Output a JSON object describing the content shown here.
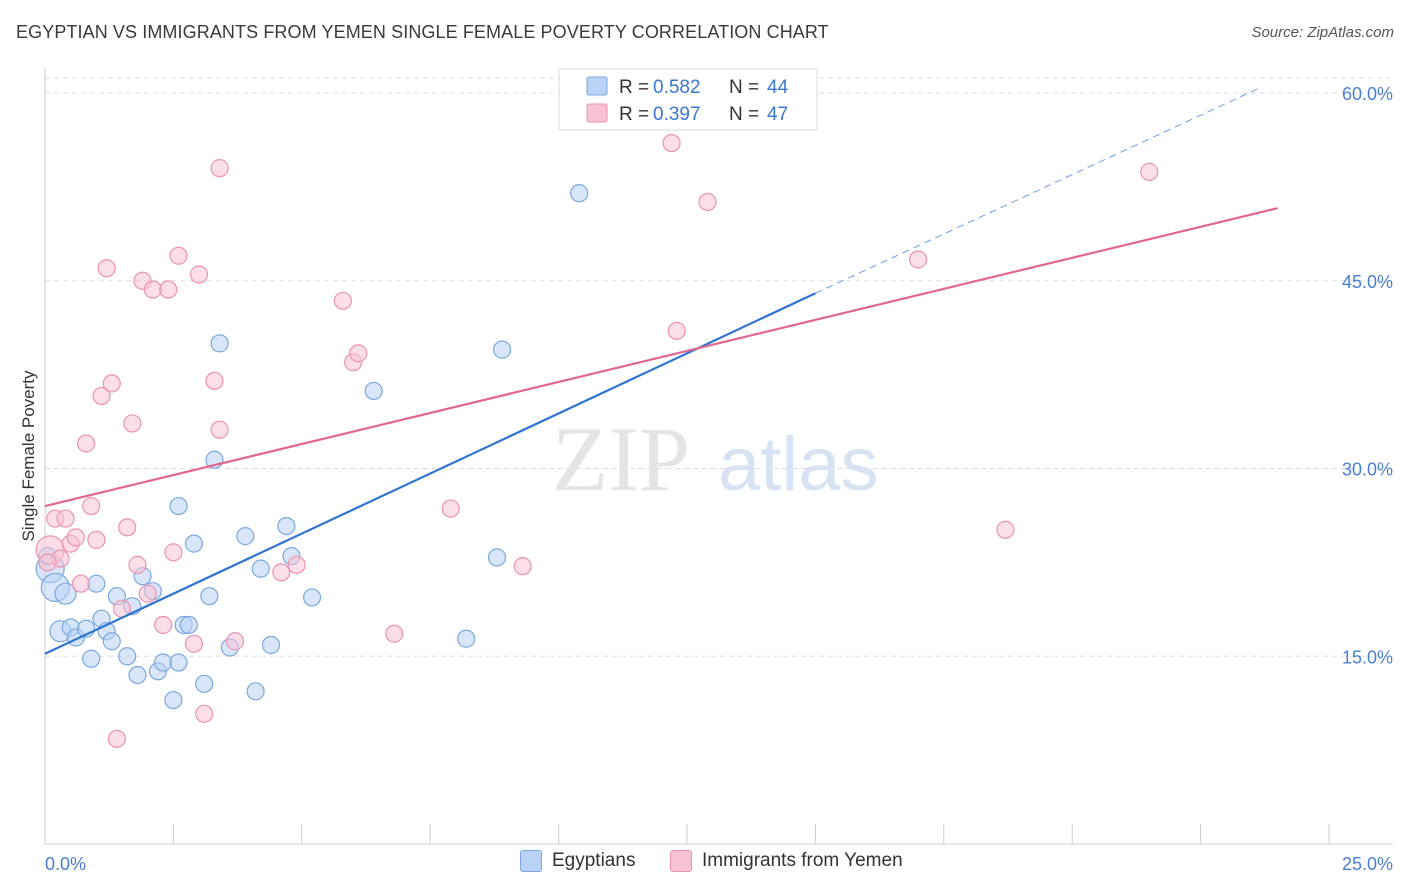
{
  "title": "EGYPTIAN VS IMMIGRANTS FROM YEMEN SINGLE FEMALE POVERTY CORRELATION CHART",
  "source": "Source: ZipAtlas.com",
  "watermark": {
    "zip": "ZIP",
    "atlas": "atlas"
  },
  "colors": {
    "egyptians_fill": "#b9d2f5",
    "egyptians_stroke": "#7aa8e0",
    "egyptians_line": "#2f74d0",
    "yemen_fill": "#f7c3d4",
    "yemen_stroke": "#eb93b2",
    "yemen_line": "#e06791",
    "axis_label": "#4a7fd0",
    "grid": "#dddddd"
  },
  "legend_top": {
    "rows": [
      {
        "r_label": "R = ",
        "r_value": "0.582",
        "n_label": "N = ",
        "n_value": "44"
      },
      {
        "r_label": "R = ",
        "r_value": "0.397",
        "n_label": "N = ",
        "n_value": "47"
      }
    ]
  },
  "chart_data": {
    "type": "scatter",
    "title": "EGYPTIAN VS IMMIGRANTS FROM YEMEN SINGLE FEMALE POVERTY CORRELATION CHART",
    "xlabel": "",
    "ylabel": "Single Female Poverty",
    "xlim": [
      0,
      25
    ],
    "ylim": [
      0,
      62
    ],
    "x_tick_labels": [
      {
        "value": 0,
        "label": "0.0%"
      },
      {
        "value": 25,
        "label": "25.0%"
      }
    ],
    "y_ticks": [
      {
        "value": 15,
        "label": "15.0%"
      },
      {
        "value": 30,
        "label": "30.0%"
      },
      {
        "value": 45,
        "label": "45.0%"
      },
      {
        "value": 60,
        "label": "60.0%"
      }
    ],
    "grid": "horizontal-dashed",
    "legend_position": "top-center",
    "series": [
      {
        "name": "Egyptians",
        "r": 0.582,
        "n": 44,
        "trend": {
          "x0": 0,
          "y0": 15.2,
          "x1": 15,
          "y1": 44.0,
          "dash_to_x": 23.7,
          "dash_to_y": 60.5
        },
        "points": [
          [
            0.1,
            22.0,
            "l"
          ],
          [
            0.2,
            20.5,
            "l"
          ],
          [
            0.4,
            20.0,
            "m"
          ],
          [
            0.3,
            17.0,
            "m"
          ],
          [
            0.5,
            17.3,
            "s"
          ],
          [
            0.6,
            16.5,
            "s"
          ],
          [
            0.8,
            17.2,
            "s"
          ],
          [
            0.9,
            14.8,
            "s"
          ],
          [
            1.0,
            20.8,
            "s"
          ],
          [
            1.1,
            18.0,
            "s"
          ],
          [
            1.2,
            17.0,
            "s"
          ],
          [
            1.3,
            16.2,
            "s"
          ],
          [
            1.4,
            19.8,
            "s"
          ],
          [
            1.6,
            15.0,
            "s"
          ],
          [
            1.7,
            19.0,
            "s"
          ],
          [
            1.8,
            13.5,
            "s"
          ],
          [
            1.9,
            21.4,
            "s"
          ],
          [
            2.1,
            20.2,
            "s"
          ],
          [
            2.2,
            13.8,
            "s"
          ],
          [
            2.3,
            14.5,
            "s"
          ],
          [
            2.5,
            11.5,
            "s"
          ],
          [
            2.6,
            14.5,
            "s"
          ],
          [
            2.6,
            27.0,
            "s"
          ],
          [
            2.7,
            17.5,
            "s"
          ],
          [
            2.8,
            17.5,
            "s"
          ],
          [
            2.9,
            24.0,
            "s"
          ],
          [
            3.1,
            12.8,
            "s"
          ],
          [
            3.2,
            19.8,
            "s"
          ],
          [
            3.3,
            30.7,
            "s"
          ],
          [
            3.4,
            40.0,
            "s"
          ],
          [
            3.6,
            15.7,
            "s"
          ],
          [
            3.9,
            24.6,
            "s"
          ],
          [
            4.1,
            12.2,
            "s"
          ],
          [
            4.2,
            22.0,
            "s"
          ],
          [
            4.4,
            15.9,
            "s"
          ],
          [
            4.7,
            25.4,
            "s"
          ],
          [
            4.8,
            23.0,
            "s"
          ],
          [
            5.2,
            19.7,
            "s"
          ],
          [
            6.4,
            36.2,
            "s"
          ],
          [
            8.2,
            16.4,
            "s"
          ],
          [
            8.8,
            22.9,
            "s"
          ],
          [
            8.9,
            39.5,
            "s"
          ],
          [
            10.4,
            52.0,
            "s"
          ],
          [
            0.05,
            23.0,
            "s"
          ]
        ]
      },
      {
        "name": "Immigrants from Yemen",
        "r": 0.397,
        "n": 47,
        "trend": {
          "x0": 0,
          "y0": 27.0,
          "x1": 24.0,
          "y1": 50.8
        },
        "points": [
          [
            0.1,
            23.5,
            "l"
          ],
          [
            0.2,
            26.0,
            "s"
          ],
          [
            0.3,
            22.8,
            "s"
          ],
          [
            0.4,
            26.0,
            "s"
          ],
          [
            0.5,
            24.0,
            "s"
          ],
          [
            0.6,
            24.5,
            "s"
          ],
          [
            0.7,
            20.8,
            "s"
          ],
          [
            0.8,
            32.0,
            "s"
          ],
          [
            0.9,
            27.0,
            "s"
          ],
          [
            1.0,
            24.3,
            "s"
          ],
          [
            1.1,
            35.8,
            "s"
          ],
          [
            1.2,
            46.0,
            "s"
          ],
          [
            1.3,
            36.8,
            "s"
          ],
          [
            1.4,
            8.4,
            "s"
          ],
          [
            1.5,
            18.8,
            "s"
          ],
          [
            1.6,
            25.3,
            "s"
          ],
          [
            1.7,
            33.6,
            "s"
          ],
          [
            1.8,
            22.3,
            "s"
          ],
          [
            1.9,
            45.0,
            "s"
          ],
          [
            2.0,
            20.0,
            "s"
          ],
          [
            2.1,
            44.3,
            "s"
          ],
          [
            2.3,
            17.5,
            "s"
          ],
          [
            2.4,
            44.3,
            "s"
          ],
          [
            2.5,
            23.3,
            "s"
          ],
          [
            2.6,
            47.0,
            "s"
          ],
          [
            2.9,
            16.0,
            "s"
          ],
          [
            3.0,
            45.5,
            "s"
          ],
          [
            3.1,
            10.4,
            "s"
          ],
          [
            3.3,
            37.0,
            "s"
          ],
          [
            3.4,
            33.1,
            "s"
          ],
          [
            3.4,
            54.0,
            "s"
          ],
          [
            3.7,
            16.2,
            "s"
          ],
          [
            4.6,
            21.7,
            "s"
          ],
          [
            4.9,
            22.3,
            "s"
          ],
          [
            5.8,
            43.4,
            "s"
          ],
          [
            6.0,
            38.5,
            "s"
          ],
          [
            6.1,
            39.2,
            "s"
          ],
          [
            6.8,
            16.8,
            "s"
          ],
          [
            7.9,
            26.8,
            "s"
          ],
          [
            9.3,
            22.2,
            "s"
          ],
          [
            12.2,
            56.0,
            "s"
          ],
          [
            12.3,
            41.0,
            "s"
          ],
          [
            12.9,
            51.3,
            "s"
          ],
          [
            17.0,
            46.7,
            "s"
          ],
          [
            18.7,
            25.1,
            "s"
          ],
          [
            21.5,
            53.7,
            "s"
          ],
          [
            0.05,
            22.5,
            "s"
          ]
        ]
      }
    ]
  }
}
